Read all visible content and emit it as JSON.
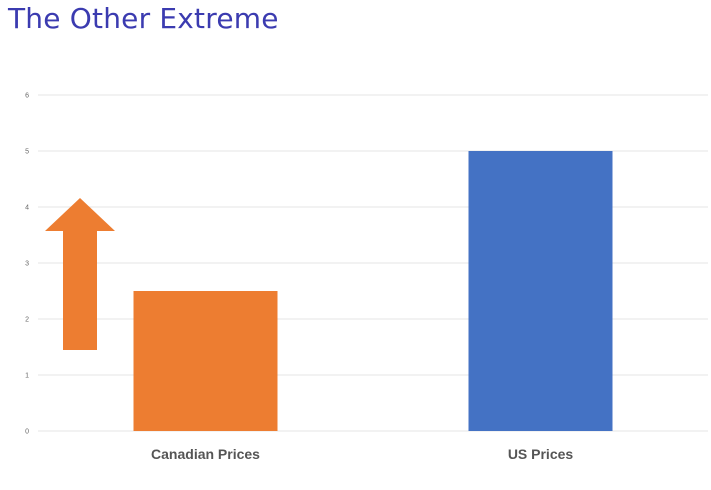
{
  "slide": {
    "title": "The Other Extreme"
  },
  "colors": {
    "title": "#3b3bb0",
    "canadian": "#ed7d31",
    "us": "#4472c4",
    "arrow": "#ed7d31",
    "grid": "#e4e4e4"
  },
  "annotations": {
    "arrow": "up-arrow-icon"
  },
  "chart_data": {
    "type": "bar",
    "categories": [
      "Canadian Prices",
      "US Prices"
    ],
    "values": [
      2.5,
      5
    ],
    "colors": [
      "#ed7d31",
      "#4472c4"
    ],
    "ylim": [
      0,
      6
    ],
    "yticks": [
      "0",
      "1",
      "2",
      "3",
      "4",
      "5",
      "6"
    ],
    "grid": true,
    "title": "",
    "xlabel": "",
    "ylabel": ""
  }
}
